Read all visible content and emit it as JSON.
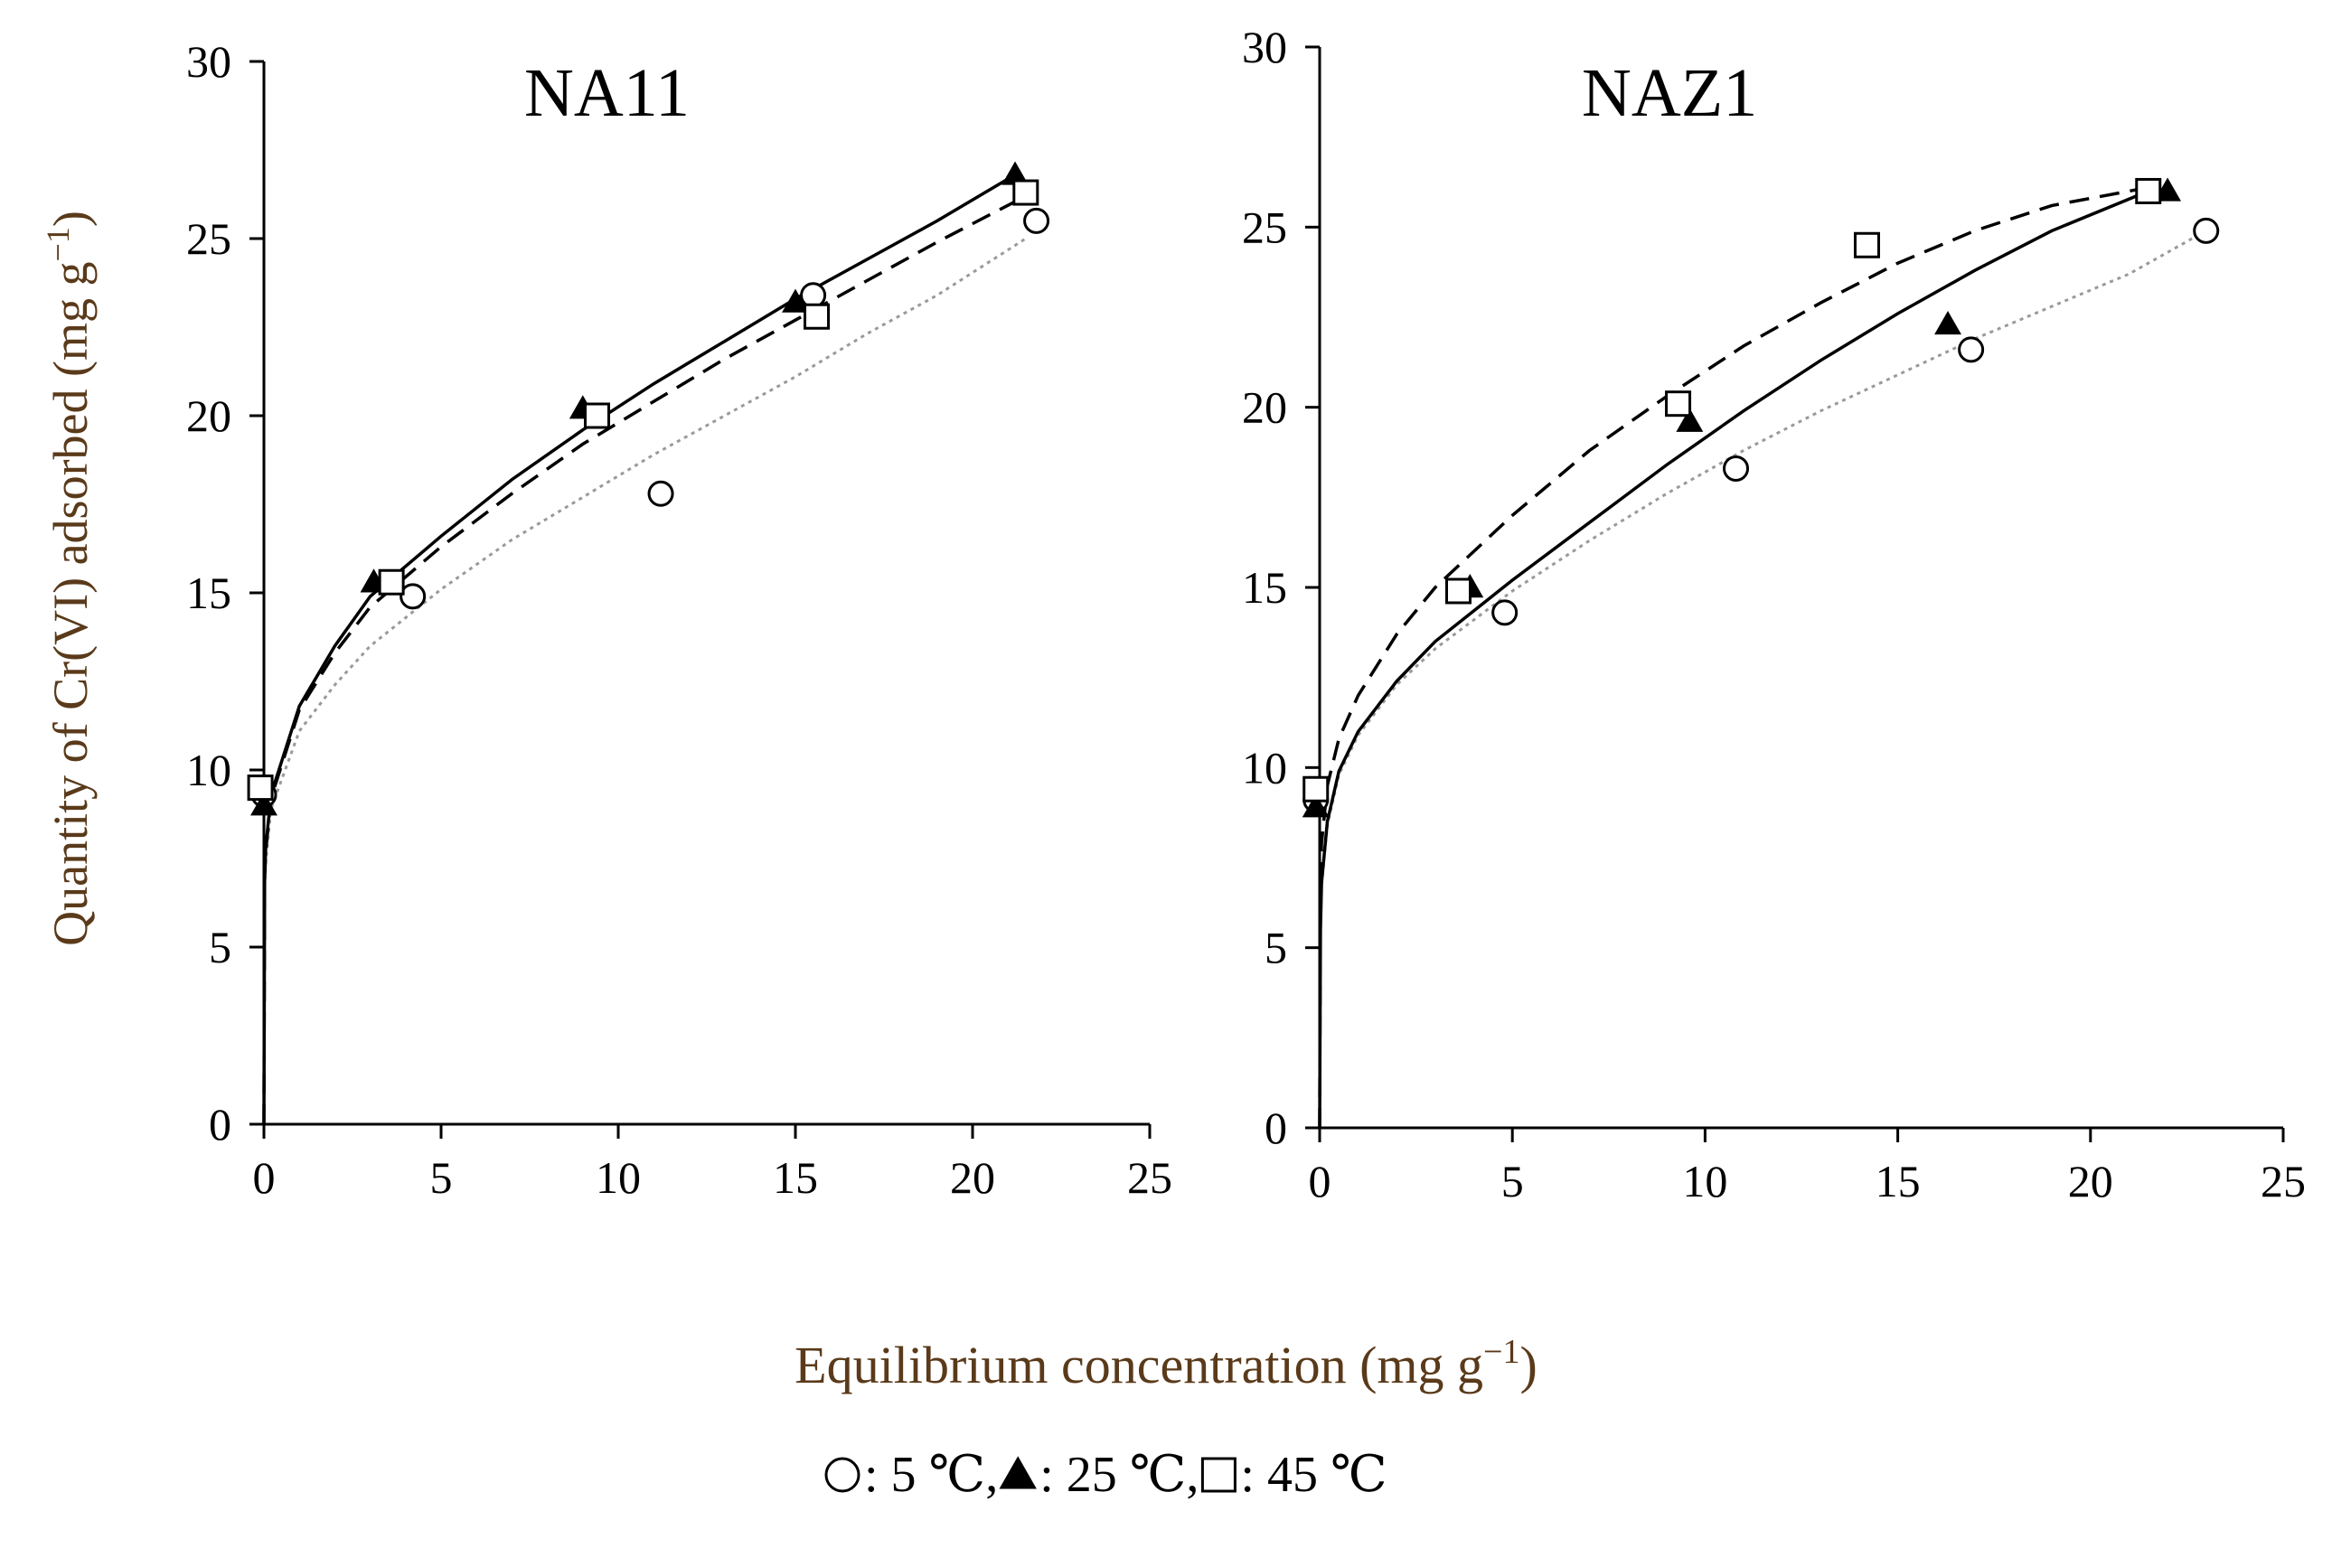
{
  "figure": {
    "ylabel_main": "Quantity of Cr(VI) adsorbed (mg g",
    "ylabel_sup": "−1",
    "ylabel_close": ")",
    "xlabel_main": "Equilibrium concentration (mg g",
    "xlabel_sup": "−1",
    "xlabel_close": ")"
  },
  "legend": [
    {
      "marker": "circle-open",
      "text": ": 5 ℃, "
    },
    {
      "marker": "triangle-filled",
      "text": ": 25 ℃, "
    },
    {
      "marker": "square-open",
      "text": ": 45 ℃"
    }
  ],
  "chart_data": [
    {
      "type": "scatter",
      "title": "NA11",
      "xlim": [
        0,
        25
      ],
      "ylim": [
        0,
        30
      ],
      "xticks": [
        "0",
        "5",
        "10",
        "15",
        "20",
        "25"
      ],
      "yticks": [
        "0",
        "5",
        "10",
        "15",
        "20",
        "25",
        "30"
      ],
      "series": [
        {
          "marker": "circle-open",
          "line": "dotted",
          "color": "#9a9a9a",
          "points": [
            [
              0,
              9.3
            ],
            [
              4.2,
              14.9
            ],
            [
              11.2,
              17.8
            ],
            [
              15.5,
              23.4
            ],
            [
              21.8,
              25.5
            ]
          ],
          "curve": [
            [
              0,
              0
            ],
            [
              0.02,
              6.6
            ],
            [
              0.05,
              7.4
            ],
            [
              0.2,
              8.9
            ],
            [
              1,
              11.1
            ],
            [
              2,
              12.4
            ],
            [
              3,
              13.5
            ],
            [
              5,
              15.1
            ],
            [
              7,
              16.5
            ],
            [
              9,
              17.7
            ],
            [
              11,
              18.9
            ],
            [
              13,
              20.0
            ],
            [
              15,
              21.1
            ],
            [
              17,
              22.3
            ],
            [
              19,
              23.4
            ],
            [
              21.5,
              25.0
            ]
          ]
        },
        {
          "marker": "triangle-filled",
          "line": "solid",
          "color": "#000000",
          "points": [
            [
              0,
              9.0
            ],
            [
              3.1,
              15.3
            ],
            [
              9.0,
              20.2
            ],
            [
              15.0,
              23.2
            ],
            [
              21.2,
              26.8
            ]
          ],
          "curve": [
            [
              0,
              0
            ],
            [
              0.02,
              7.0
            ],
            [
              0.05,
              7.8
            ],
            [
              0.2,
              9.3
            ],
            [
              1,
              11.8
            ],
            [
              2,
              13.5
            ],
            [
              3,
              14.9
            ],
            [
              5,
              16.6
            ],
            [
              7,
              18.2
            ],
            [
              9,
              19.6
            ],
            [
              11,
              20.9
            ],
            [
              13,
              22.1
            ],
            [
              15,
              23.3
            ],
            [
              17,
              24.4
            ],
            [
              19,
              25.5
            ],
            [
              21.2,
              26.8
            ]
          ]
        },
        {
          "marker": "square-open",
          "line": "dashed",
          "color": "#000000",
          "points": [
            [
              -0.1,
              9.5
            ],
            [
              3.6,
              15.3
            ],
            [
              9.4,
              20.0
            ],
            [
              15.6,
              22.8
            ],
            [
              21.5,
              26.3
            ]
          ],
          "curve": [
            [
              0,
              0
            ],
            [
              0.02,
              6.9
            ],
            [
              0.05,
              7.7
            ],
            [
              0.2,
              9.2
            ],
            [
              1,
              11.7
            ],
            [
              2,
              13.3
            ],
            [
              3,
              14.6
            ],
            [
              5,
              16.3
            ],
            [
              7,
              17.8
            ],
            [
              9,
              19.2
            ],
            [
              11,
              20.4
            ],
            [
              13,
              21.6
            ],
            [
              15,
              22.7
            ],
            [
              17,
              23.8
            ],
            [
              19,
              24.9
            ],
            [
              21.5,
              26.2
            ]
          ]
        }
      ]
    },
    {
      "type": "scatter",
      "title": "NAZ1",
      "xlim": [
        0,
        25
      ],
      "ylim": [
        0,
        30
      ],
      "xticks": [
        "0",
        "5",
        "10",
        "15",
        "20",
        "25"
      ],
      "yticks": [
        "0",
        "5",
        "10",
        "15",
        "20",
        "25",
        "30"
      ],
      "series": [
        {
          "marker": "circle-open",
          "line": "dotted",
          "color": "#9a9a9a",
          "points": [
            [
              -0.1,
              9.1
            ],
            [
              4.8,
              14.3
            ],
            [
              10.8,
              18.3
            ],
            [
              16.9,
              21.6
            ],
            [
              23.0,
              24.9
            ]
          ],
          "curve": [
            [
              0,
              0
            ],
            [
              0.02,
              5.5
            ],
            [
              0.05,
              6.7
            ],
            [
              0.2,
              8.4
            ],
            [
              0.5,
              9.8
            ],
            [
              1,
              10.9
            ],
            [
              2,
              12.3
            ],
            [
              3,
              13.3
            ],
            [
              5,
              14.9
            ],
            [
              7,
              16.3
            ],
            [
              9,
              17.6
            ],
            [
              11,
              18.8
            ],
            [
              13,
              19.9
            ],
            [
              15,
              20.9
            ],
            [
              17,
              21.9
            ],
            [
              19,
              22.8
            ],
            [
              21,
              23.7
            ],
            [
              23,
              24.9
            ]
          ]
        },
        {
          "marker": "triangle-filled",
          "line": "solid",
          "color": "#000000",
          "points": [
            [
              -0.1,
              8.9
            ],
            [
              3.9,
              15.0
            ],
            [
              9.6,
              19.6
            ],
            [
              16.3,
              22.3
            ],
            [
              22.0,
              26.0
            ]
          ],
          "curve": [
            [
              0,
              0
            ],
            [
              0.02,
              5.5
            ],
            [
              0.05,
              6.8
            ],
            [
              0.2,
              8.5
            ],
            [
              0.5,
              9.9
            ],
            [
              1,
              11.0
            ],
            [
              2,
              12.4
            ],
            [
              3,
              13.5
            ],
            [
              5,
              15.2
            ],
            [
              7,
              16.8
            ],
            [
              9,
              18.4
            ],
            [
              11,
              19.9
            ],
            [
              13,
              21.3
            ],
            [
              15,
              22.6
            ],
            [
              17,
              23.8
            ],
            [
              19,
              24.9
            ],
            [
              21.5,
              26.0
            ]
          ]
        },
        {
          "marker": "square-open",
          "line": "dashed",
          "color": "#000000",
          "points": [
            [
              -0.1,
              9.4
            ],
            [
              3.6,
              14.9
            ],
            [
              9.3,
              20.1
            ],
            [
              14.2,
              24.5
            ],
            [
              21.5,
              26.0
            ]
          ],
          "curve": [
            [
              0,
              0
            ],
            [
              0.02,
              7.0
            ],
            [
              0.05,
              7.9
            ],
            [
              0.2,
              9.5
            ],
            [
              0.5,
              10.8
            ],
            [
              1,
              12.0
            ],
            [
              2,
              13.7
            ],
            [
              3,
              15.0
            ],
            [
              5,
              17.0
            ],
            [
              7,
              18.8
            ],
            [
              9,
              20.3
            ],
            [
              11,
              21.7
            ],
            [
              13,
              22.9
            ],
            [
              15,
              24.0
            ],
            [
              17,
              24.9
            ],
            [
              19,
              25.6
            ],
            [
              21.5,
              26.1
            ]
          ]
        }
      ]
    }
  ]
}
